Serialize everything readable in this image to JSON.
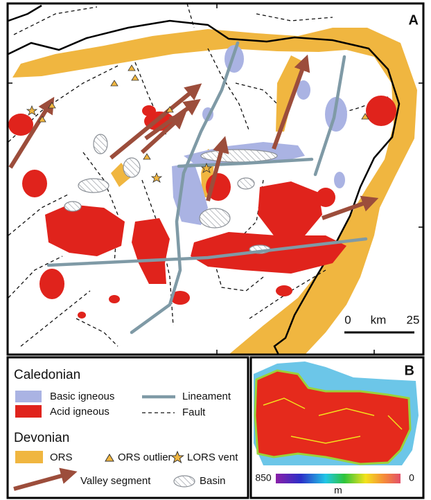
{
  "panel_a": {
    "label": "A",
    "scale_bar": {
      "start": 0,
      "unit": "km",
      "end": 25
    }
  },
  "legend": {
    "caledonian": {
      "title": "Caledonian",
      "basic_igneous": "Basic igneous",
      "acid_igneous": "Acid igneous",
      "lineament": "Lineament",
      "fault": "Fault"
    },
    "devonian": {
      "title": "Devonian",
      "ors": "ORS",
      "ors_outlier": "ORS outlier",
      "lors_vent": "LORS vent"
    },
    "valley_segment": "Valley segment",
    "basin": "Basin"
  },
  "panel_b": {
    "label": "B",
    "colorbar": {
      "max": 850,
      "min": 0,
      "unit": "m"
    }
  }
}
